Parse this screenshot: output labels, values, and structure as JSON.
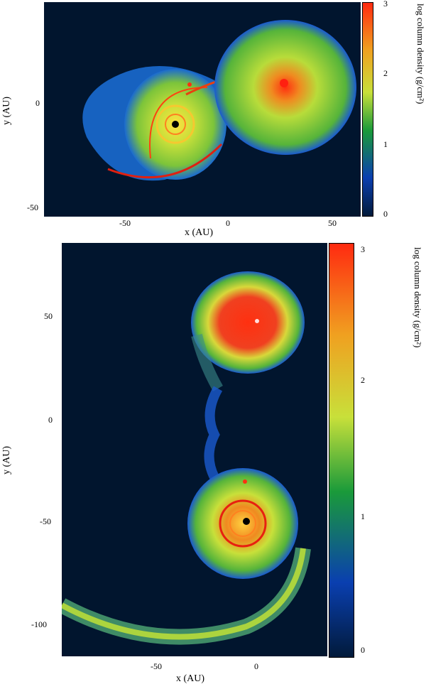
{
  "top": {
    "xlabel": "x (AU)",
    "ylabel": "y (AU)",
    "cbar_label": "log column density (g/cm²)",
    "xticks": [
      "-50",
      "0",
      "50"
    ],
    "yticks": [
      "0",
      "-50"
    ],
    "cticks": [
      "3",
      "2",
      "1",
      "0"
    ]
  },
  "bottom": {
    "xlabel": "x (AU)",
    "ylabel": "y (AU)",
    "cbar_label": "log column density (g/cm²)",
    "xticks": [
      "-50",
      "0"
    ],
    "yticks": [
      "50",
      "0",
      "-50",
      "-100"
    ],
    "cticks": [
      "3",
      "2",
      "1",
      "0"
    ]
  },
  "colormap": [
    "#011a3a",
    "#0a3fb0",
    "#1a9a3a",
    "#c8e03a",
    "#f0a020",
    "#ff2a10"
  ]
}
